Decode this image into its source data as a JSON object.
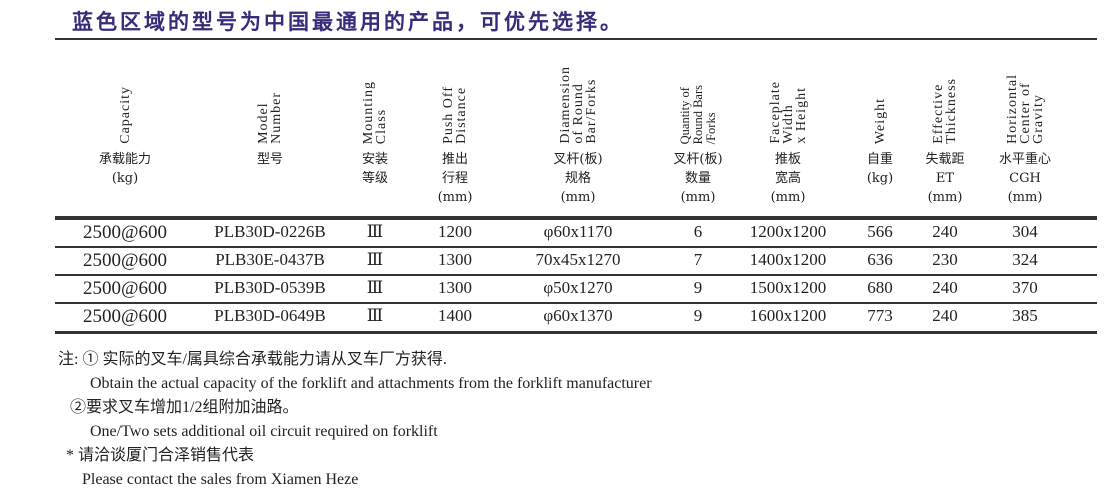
{
  "title": "蓝色区域的型号为中国最通用的产品，可优先选择。",
  "columns": [
    {
      "en": "Capacity",
      "zh": "承载能力\n(kg)"
    },
    {
      "en": "Model\nNumber",
      "zh": "型号"
    },
    {
      "en": "Mounting\nClass",
      "zh": "安装\n等级"
    },
    {
      "en": "Push Off\nDistance",
      "zh": "推出\n行程\n(mm)"
    },
    {
      "en": "Diamension\nof Round\nBar/Forks",
      "zh": "叉杆(板)\n规格\n(mm)"
    },
    {
      "en": "Quantity of\nRound Bars\n/Forks",
      "zh": "叉杆(板)\n数量\n(mm)"
    },
    {
      "en": "Faceplate\nWidth\nx Height",
      "zh": "推板\n宽高\n(mm)"
    },
    {
      "en": "Weight",
      "zh": "自重\n(kg)"
    },
    {
      "en": "Effective\nThickness",
      "zh": "失载距\nET\n(mm)"
    },
    {
      "en": "Horizontal\nCenter of\nGravity",
      "zh": "水平重心\nCGH\n(mm)"
    }
  ],
  "rows": [
    [
      "2500@600",
      "PLB30D-0226B",
      "Ⅲ",
      "1200",
      "φ60x1170",
      "6",
      "1200x1200",
      "566",
      "240",
      "304"
    ],
    [
      "2500@600",
      "PLB30E-0437B",
      "Ⅲ",
      "1300",
      "70x45x1270",
      "7",
      "1400x1200",
      "636",
      "230",
      "324"
    ],
    [
      "2500@600",
      "PLB30D-0539B",
      "Ⅲ",
      "1300",
      "φ50x1270",
      "9",
      "1500x1200",
      "680",
      "240",
      "370"
    ],
    [
      "2500@600",
      "PLB30D-0649B",
      "Ⅲ",
      "1400",
      "φ60x1370",
      "9",
      "1600x1200",
      "773",
      "240",
      "385"
    ]
  ],
  "notes": [
    "注: ① 实际的叉车/属具综合承载能力请从叉车厂方获得.",
    "        Obtain the actual capacity of the forklift and attachments from the forklift manufacturer",
    "   ②要求叉车增加1/2组附加油路。",
    "        One/Two sets additional oil circuit required on forklift",
    "  * 请洽谈厦门合泽销售代表",
    "      Please contact the sales from Xiamen Heze"
  ],
  "colors": {
    "title": "#3a2a7a",
    "text": "#222222"
  }
}
